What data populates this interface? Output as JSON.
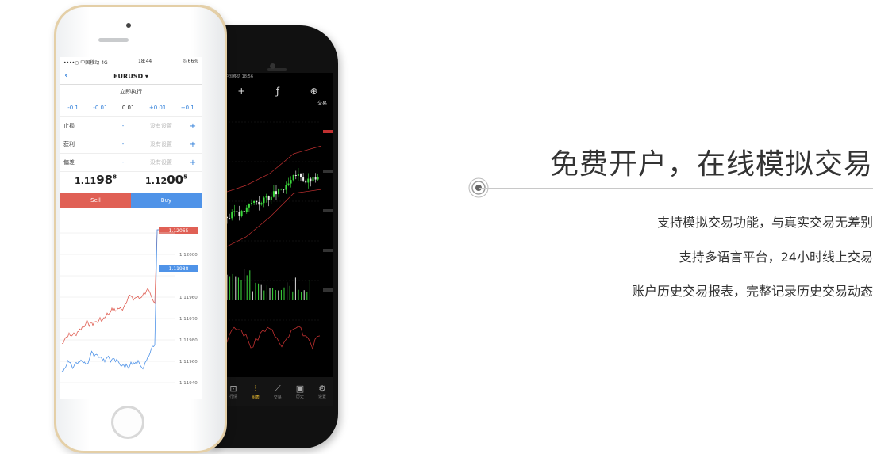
{
  "white_phone": {
    "status_left": "••••○ 中国移动 4G",
    "status_time": "18:44",
    "status_right": "◎ 66%",
    "symbol": "EURUSD ▾",
    "back": "‹",
    "subtitle": "立即执行",
    "volumes": [
      "-0.1",
      "-0.01",
      "0.01",
      "+0.01",
      "+0.1"
    ],
    "fields": [
      {
        "label": "止损",
        "minus": "-",
        "value": "没有设置",
        "plus": "+"
      },
      {
        "label": "获利",
        "minus": "-",
        "value": "没有设置",
        "plus": "+"
      },
      {
        "label": "偏差",
        "minus": "-",
        "value": "没有设置",
        "plus": "+"
      }
    ],
    "bid": {
      "prefix": "1.11",
      "big": "98",
      "sup": "8"
    },
    "ask": {
      "prefix": "1.12",
      "big": "00",
      "sup": "5"
    },
    "sell_label": "Sell",
    "buy_label": "Buy",
    "price_ticks": [
      "1.12065",
      "1.12000",
      "1.11988",
      "1.11960",
      "1.11970",
      "1.11980",
      "1.11960",
      "1.11940"
    ],
    "price_tag_red": "1.12065",
    "price_tag_blue": "1.11988"
  },
  "black_phone": {
    "status": "中国移动 18:56",
    "toolbar": [
      "+",
      "ƒ",
      "⊕"
    ],
    "tag_label": "交易",
    "tabs": [
      {
        "icon": "⊡",
        "label": "行情",
        "active": false
      },
      {
        "icon": "⫶",
        "label": "图表",
        "active": true
      },
      {
        "icon": "⟋",
        "label": "交易",
        "active": false
      },
      {
        "icon": "▣",
        "label": "历史",
        "active": false
      },
      {
        "icon": "⚙",
        "label": "设置",
        "active": false
      }
    ]
  },
  "headline": "免费开户，在线模拟交易",
  "features": [
    "支持模拟交易功能，与真实交易无差别",
    "支持多语言平台，24小时线上交易",
    "账户历史交易报表，完整记录历史交易动态"
  ],
  "colors": {
    "sell": "#e06055",
    "buy": "#4f93e8",
    "accent_text": "#333333",
    "gold_frame": "#e4cfa7"
  }
}
